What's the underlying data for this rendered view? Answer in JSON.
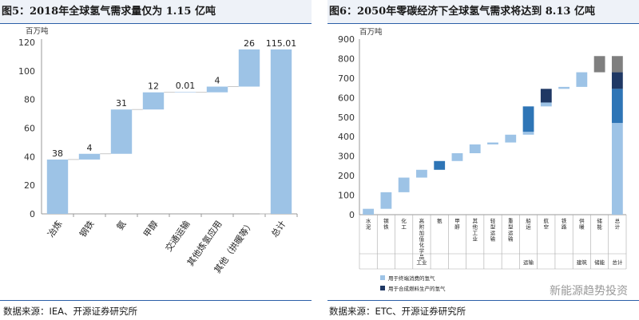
{
  "left_title": "图5：2018年全球氢气需求量仅为 1.15 亿吨",
  "right_title": "图6：2050年零碳经济下全球氢气需求将达到 8.13 亿吨",
  "left_source": "数据来源：IEA、开源证券研究所",
  "right_source": "数据来源：ETC、开源证券研究所",
  "watermark": "新能源趋势投资",
  "colors": {
    "light_blue": "#9dc3e6",
    "mid_blue": "#2e75b6",
    "dark_navy": "#1f3864",
    "gray": "#7f7f7f"
  },
  "chart_data": [
    {
      "type": "bar",
      "subtype": "waterfall",
      "unit_label": "百万吨",
      "ylim": [
        0,
        120
      ],
      "yticks": [
        0,
        20,
        40,
        60,
        80,
        100,
        120
      ],
      "categories": [
        "冶炼",
        "钢铁",
        "氨",
        "甲醇",
        "交通运输",
        "其他炼氢应用",
        "其他（拱暖等）",
        "总计"
      ],
      "values": [
        38,
        4,
        31,
        12,
        0.01,
        4,
        26,
        115.01
      ],
      "labels": [
        "38",
        "4",
        "31",
        "12",
        "0.01",
        "4",
        "26",
        "115.01"
      ]
    },
    {
      "type": "bar",
      "subtype": "stacked-waterfall",
      "unit_label": "百万吨",
      "ylim": [
        0,
        900
      ],
      "yticks": [
        0,
        100,
        200,
        300,
        400,
        500,
        600,
        700,
        800,
        900
      ],
      "categories": [
        "水泥",
        "钢铁",
        "化工",
        "高附加值化学品",
        "氨",
        "甲醇",
        "其他工业",
        "轻型运输",
        "重型运输",
        "船运",
        "航空",
        "铁路",
        "供暖",
        "储能",
        "总计"
      ],
      "sector_groups": [
        {
          "name": "工业",
          "from": 0,
          "to": 6
        },
        {
          "name": "运输",
          "from": 7,
          "to": 11
        },
        {
          "name": "建筑",
          "from": 12,
          "to": 12
        },
        {
          "name": "储能",
          "from": 13,
          "to": 13
        },
        {
          "name": "总计",
          "from": 14,
          "to": 14
        }
      ],
      "legend": [
        "用于终端消费的氢气",
        "用于合成燃料生产的氢气"
      ],
      "segments": [
        [
          {
            "from": 0,
            "to": 30,
            "kind": "light"
          }
        ],
        [
          {
            "from": 30,
            "to": 115,
            "kind": "light"
          }
        ],
        [
          {
            "from": 115,
            "to": 190,
            "kind": "light"
          }
        ],
        [
          {
            "from": 190,
            "to": 230,
            "kind": "light"
          }
        ],
        [
          {
            "from": 230,
            "to": 275,
            "kind": "mid"
          }
        ],
        [
          {
            "from": 275,
            "to": 315,
            "kind": "light"
          }
        ],
        [
          {
            "from": 315,
            "to": 360,
            "kind": "light"
          }
        ],
        [
          {
            "from": 360,
            "to": 370,
            "kind": "light"
          }
        ],
        [
          {
            "from": 370,
            "to": 410,
            "kind": "light"
          }
        ],
        [
          {
            "from": 410,
            "to": 425,
            "kind": "light"
          },
          {
            "from": 425,
            "to": 555,
            "kind": "mid"
          }
        ],
        [
          {
            "from": 555,
            "to": 575,
            "kind": "light"
          },
          {
            "from": 575,
            "to": 645,
            "kind": "dark"
          }
        ],
        [
          {
            "from": 645,
            "to": 655,
            "kind": "light"
          }
        ],
        [
          {
            "from": 655,
            "to": 730,
            "kind": "light"
          }
        ],
        [
          {
            "from": 730,
            "to": 813,
            "kind": "gray"
          }
        ],
        [
          {
            "from": 0,
            "to": 470,
            "kind": "light"
          },
          {
            "from": 470,
            "to": 645,
            "kind": "mid"
          },
          {
            "from": 645,
            "to": 730,
            "kind": "dark"
          },
          {
            "from": 730,
            "to": 813,
            "kind": "gray"
          }
        ]
      ]
    }
  ]
}
